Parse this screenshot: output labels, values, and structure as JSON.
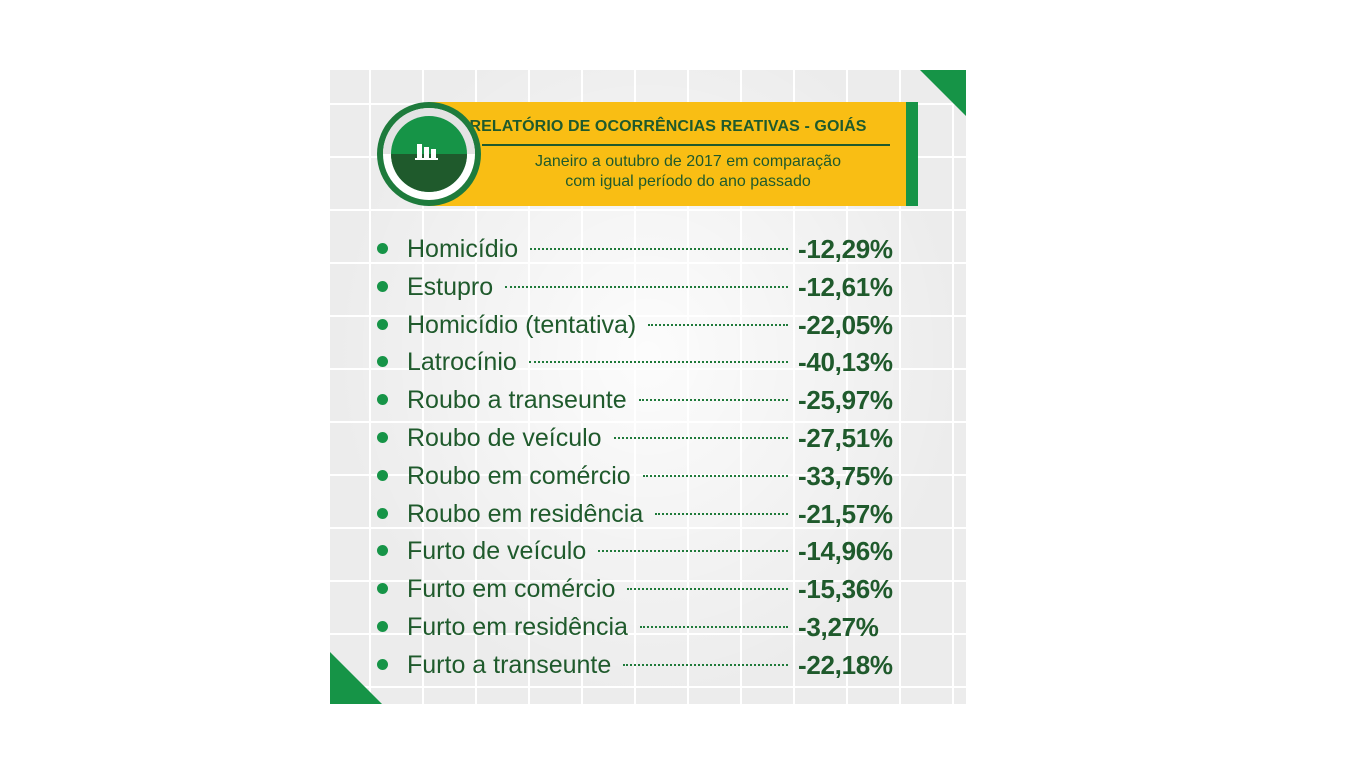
{
  "header": {
    "title": "RELATÓRIO DE OCORRÊNCIAS REATIVAS - GOIÁS",
    "subtitle_line1": "Janeiro a outubro de 2017 em comparação",
    "subtitle_line2": "com igual período do ano passado",
    "icon": "bar-chart-icon"
  },
  "colors": {
    "green": "#169447",
    "dark_green": "#1f5a2c",
    "yellow": "#f9be14",
    "background": "#ececec"
  },
  "chart_data": {
    "type": "table",
    "title": "RELATÓRIO DE OCORRÊNCIAS REATIVAS - GOIÁS",
    "subtitle": "Janeiro a outubro de 2017 em comparação com igual período do ano passado",
    "rows": [
      {
        "label": "Homicídio",
        "value": -12.29,
        "display": "-12,29%"
      },
      {
        "label": "Estupro",
        "value": -12.61,
        "display": "-12,61%"
      },
      {
        "label": "Homicídio (tentativa)",
        "value": -22.05,
        "display": "-22,05%"
      },
      {
        "label": "Latrocínio",
        "value": -40.13,
        "display": "-40,13%"
      },
      {
        "label": "Roubo a transeunte",
        "value": -25.97,
        "display": "-25,97%"
      },
      {
        "label": "Roubo de veículo",
        "value": -27.51,
        "display": "-27,51%"
      },
      {
        "label": "Roubo em comércio",
        "value": -33.75,
        "display": "-33,75%"
      },
      {
        "label": "Roubo em residência",
        "value": -21.57,
        "display": "-21,57%"
      },
      {
        "label": "Furto de veículo",
        "value": -14.96,
        "display": "-14,96%"
      },
      {
        "label": "Furto em comércio",
        "value": -15.36,
        "display": "-15,36%"
      },
      {
        "label": "Furto em residência",
        "value": -3.27,
        "display": "-3,27%"
      },
      {
        "label": "Furto a transeunte",
        "value": -22.18,
        "display": "-22,18%"
      }
    ]
  }
}
